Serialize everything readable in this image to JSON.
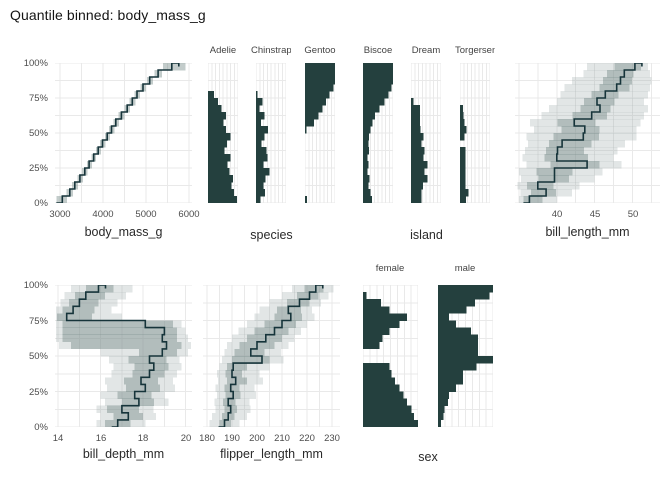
{
  "chart_data": {
    "type": "area",
    "title": "Quantile binned: body_mass_g",
    "subtitle": "",
    "layout_hint": "two rows of panels sharing a quantile y-axis; step-line panels with confidence bands for numeric features, faceted horizontal-bar histograms for categorical features; light gray grid on white; no legend",
    "colors": {
      "bar_dark": "#24403e",
      "line_dark": "#16343a",
      "band_inner": "rgba(113,134,132,0.42)",
      "band_outer": "rgba(158,173,171,0.30)",
      "grid": "#e9e9e9",
      "text_dark": "#2a2a2a",
      "text_muted": "#4d4d4d"
    },
    "y_axis": {
      "label": "",
      "unit": "%",
      "n_bins": 20,
      "tick_labels": [
        "100%",
        "75%",
        "50%",
        "25%",
        "0%"
      ],
      "minor_grid_divisions": 8
    },
    "step_panels": [
      {
        "id": "body_mass_g",
        "xlabel": "body_mass_g",
        "xlim": [
          2880,
          6070
        ],
        "grid_step": 500,
        "tick_values": [
          3000,
          4000,
          5000,
          6000
        ],
        "tick_labels": [
          "3000",
          "4000",
          "5000",
          "6000"
        ],
        "median": [
          3050,
          3225,
          3340,
          3460,
          3575,
          3675,
          3780,
          3885,
          3985,
          4095,
          4195,
          4295,
          4425,
          4560,
          4680,
          4790,
          4930,
          5085,
          5280,
          5600
        ],
        "inner_lo": [
          2910,
          3150,
          3280,
          3400,
          3510,
          3620,
          3730,
          3830,
          3930,
          4040,
          4140,
          4240,
          4360,
          4500,
          4620,
          4730,
          4870,
          5020,
          5200,
          5400
        ],
        "inner_hi": [
          3160,
          3300,
          3410,
          3530,
          3640,
          3740,
          3840,
          3950,
          4050,
          4160,
          4260,
          4370,
          4500,
          4630,
          4750,
          4860,
          5000,
          5160,
          5370,
          5920
        ]
      },
      {
        "id": "bill_length_mm",
        "xlabel": "bill_length_mm",
        "xlim": [
          34.5,
          53.6
        ],
        "grid_step": 2.5,
        "tick_values": [
          40,
          45,
          50
        ],
        "tick_labels": [
          "40",
          "45",
          "50"
        ],
        "median": [
          36.4,
          38.6,
          37.5,
          39.7,
          39.7,
          44.0,
          40.0,
          40.1,
          40.7,
          43.5,
          43.7,
          42.3,
          44.6,
          45.7,
          45.3,
          46.4,
          47.9,
          48.4,
          48.9,
          50.3
        ],
        "inner_lo": [
          35.6,
          36.6,
          36.1,
          37.6,
          37.3,
          39.2,
          38.4,
          38.6,
          39.0,
          39.6,
          40.6,
          40.1,
          42.1,
          43.1,
          43.6,
          44.6,
          45.6,
          46.1,
          46.6,
          47.6
        ],
        "inner_hi": [
          38.1,
          39.9,
          39.6,
          41.6,
          42.1,
          45.6,
          44.1,
          43.6,
          44.6,
          45.6,
          45.6,
          45.1,
          46.6,
          47.1,
          47.6,
          48.1,
          49.6,
          49.9,
          50.1,
          51.1
        ],
        "outer_lo": [
          35.0,
          35.2,
          34.8,
          35.3,
          35.0,
          36.0,
          35.5,
          35.8,
          36.2,
          36.0,
          37.0,
          36.5,
          38.0,
          39.0,
          40.0,
          40.5,
          41.0,
          42.0,
          43.5,
          44.0
        ],
        "outer_hi": [
          40.0,
          42.0,
          43.0,
          45.0,
          46.0,
          48.5,
          47.5,
          48.0,
          49.0,
          50.5,
          50.5,
          51.0,
          51.5,
          52.0,
          51.5,
          52.0,
          52.3,
          52.5,
          52.3,
          52.0
        ]
      },
      {
        "id": "bill_depth_mm",
        "xlabel": "bill_depth_mm",
        "xlim": [
          13.85,
          20.3
        ],
        "grid_step": 1,
        "tick_values": [
          14,
          16,
          18,
          20
        ],
        "tick_labels": [
          "14",
          "16",
          "18",
          "20"
        ],
        "median": [
          16.8,
          17.3,
          17.0,
          17.8,
          17.6,
          18.1,
          17.9,
          18.3,
          18.5,
          18.3,
          18.9,
          19.1,
          18.9,
          19.0,
          18.1,
          14.4,
          14.7,
          15.0,
          15.3,
          15.9
        ],
        "inner_lo": [
          16.2,
          16.6,
          16.3,
          17.0,
          16.8,
          17.2,
          17.1,
          17.5,
          17.6,
          17.3,
          17.8,
          14.6,
          14.2,
          14.2,
          14.2,
          13.95,
          14.2,
          14.5,
          14.8,
          15.3
        ],
        "inner_hi": [
          17.4,
          18.0,
          17.8,
          18.5,
          18.4,
          18.8,
          18.7,
          19.0,
          19.2,
          19.1,
          19.6,
          19.8,
          19.6,
          19.6,
          19.4,
          15.6,
          15.7,
          15.9,
          16.2,
          16.6
        ],
        "outer_lo": [
          15.8,
          16.0,
          15.8,
          16.2,
          16.0,
          16.3,
          16.2,
          16.5,
          16.6,
          16.4,
          16.0,
          14.05,
          13.9,
          13.9,
          13.9,
          13.9,
          13.9,
          14.1,
          14.3,
          14.6
        ],
        "outer_hi": [
          18.1,
          18.6,
          18.5,
          19.2,
          19.0,
          19.5,
          19.4,
          19.6,
          19.8,
          19.7,
          20.1,
          20.25,
          20.1,
          20.0,
          19.8,
          17.0,
          16.5,
          16.8,
          17.2,
          17.5
        ]
      },
      {
        "id": "flipper_length_mm",
        "xlabel": "flipper_length_mm",
        "xlim": [
          178.4,
          233.2
        ],
        "grid_step": 5,
        "tick_values": [
          180,
          190,
          200,
          210,
          220,
          230
        ],
        "tick_labels": [
          "180",
          "190",
          "200",
          "210",
          "220",
          "230"
        ],
        "median": [
          187,
          188.5,
          189.5,
          188.5,
          190.5,
          189.5,
          191.5,
          190,
          190.5,
          202,
          197.5,
          200,
          203.5,
          207,
          210,
          213.5,
          212.5,
          217,
          221,
          223.5
        ],
        "inner_lo": [
          185,
          186,
          187,
          186.5,
          187.5,
          187,
          188,
          187.5,
          188,
          190,
          191,
          193,
          196,
          199,
          203,
          207,
          208,
          212,
          216,
          219
        ],
        "inner_hi": [
          189.5,
          191,
          192,
          191.5,
          193.5,
          193,
          196,
          194,
          196,
          205,
          203,
          207,
          210,
          212.5,
          215.5,
          218,
          217.5,
          221,
          224.5,
          226.5
        ],
        "outer_lo": [
          181,
          182,
          183.5,
          183,
          184,
          183.5,
          184.5,
          184,
          185,
          186,
          187,
          188,
          190,
          192.5,
          196,
          199,
          201,
          205,
          210,
          214
        ],
        "outer_hi": [
          193,
          196,
          197.5,
          197,
          199.5,
          199,
          202.5,
          201,
          205,
          210.5,
          209.5,
          212.5,
          215,
          217.5,
          220,
          223,
          222,
          225.5,
          228.5,
          230.5
        ]
      }
    ],
    "facet_groups": [
      {
        "id": "species",
        "xlabel": "species",
        "facets": [
          {
            "label": "Adelie",
            "values": [
              0.97,
              0.87,
              0.78,
              0.83,
              0.72,
              0.65,
              0.75,
              0.55,
              0.63,
              0.75,
              0.6,
              0.52,
              0.6,
              0.45,
              0.33,
              0.2,
              0,
              0,
              0,
              0
            ]
          },
          {
            "label": "Chinstrap",
            "values": [
              0.15,
              0.3,
              0.25,
              0.32,
              0.45,
              0.25,
              0.38,
              0.35,
              0.18,
              0.28,
              0.4,
              0.17,
              0.28,
              0.12,
              0.22,
              0.05,
              0,
              0,
              0,
              0
            ]
          },
          {
            "label": "Gentoo",
            "values": [
              0.06,
              0,
              0,
              0,
              0,
              0,
              0,
              0,
              0,
              0,
              0.05,
              0.3,
              0.45,
              0.58,
              0.7,
              0.82,
              0.95,
              1,
              1,
              1
            ]
          }
        ]
      },
      {
        "id": "island",
        "xlabel": "island",
        "facets": [
          {
            "label": "Biscoe",
            "values": [
              0.3,
              0.25,
              0.18,
              0.22,
              0.15,
              0.18,
              0.15,
              0.2,
              0.18,
              0.2,
              0.25,
              0.32,
              0.4,
              0.55,
              0.72,
              0.85,
              0.95,
              1,
              1,
              1
            ]
          },
          {
            "label": "Dream",
            "values": [
              0.35,
              0.35,
              0.4,
              0.55,
              0.45,
              0.55,
              0.42,
              0.45,
              0.35,
              0.42,
              0.32,
              0.3,
              0.3,
              0.3,
              0.08,
              0,
              0,
              0,
              0,
              0
            ]
          },
          {
            "label": "Torgersen",
            "values": [
              0.2,
              0.28,
              0.18,
              0.18,
              0.18,
              0.18,
              0.18,
              0.18,
              0,
              0.15,
              0.22,
              0.15,
              0.12,
              0.1,
              0,
              0,
              0,
              0,
              0,
              0
            ]
          }
        ]
      },
      {
        "id": "sex",
        "xlabel": "sex",
        "facets": [
          {
            "label": "female",
            "values": [
              1.0,
              0.93,
              0.88,
              0.8,
              0.74,
              0.66,
              0.58,
              0.52,
              0.48,
              0,
              0,
              0.3,
              0.35,
              0.48,
              0.66,
              0.8,
              0.48,
              0.33,
              0.06,
              0
            ]
          },
          {
            "label": "male",
            "values": [
              0.05,
              0.1,
              0.12,
              0.18,
              0.2,
              0.33,
              0.45,
              0.45,
              0.7,
              1.0,
              0.73,
              0.73,
              0.73,
              0.6,
              0.33,
              0.2,
              0.52,
              0.67,
              0.94,
              1.0
            ]
          }
        ]
      }
    ],
    "notes": "values arrays are fraction-of-facet-width per quantile bin, ordered bottom (0-5%) to top (95-100%)"
  }
}
